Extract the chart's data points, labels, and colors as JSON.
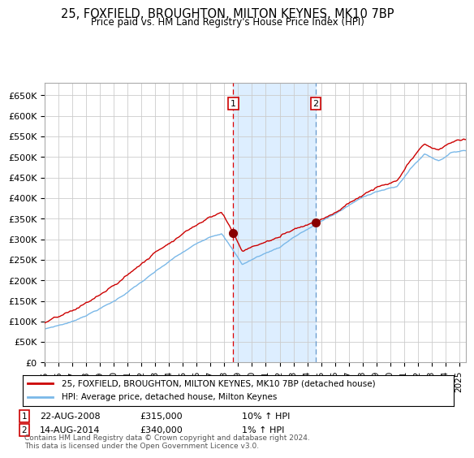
{
  "title1": "25, FOXFIELD, BROUGHTON, MILTON KEYNES, MK10 7BP",
  "title2": "Price paid vs. HM Land Registry's House Price Index (HPI)",
  "ylabel_ticks": [
    "£0",
    "£50K",
    "£100K",
    "£150K",
    "£200K",
    "£250K",
    "£300K",
    "£350K",
    "£400K",
    "£450K",
    "£500K",
    "£550K",
    "£600K",
    "£650K"
  ],
  "ytick_values": [
    0,
    50000,
    100000,
    150000,
    200000,
    250000,
    300000,
    350000,
    400000,
    450000,
    500000,
    550000,
    600000,
    650000
  ],
  "ylim": [
    0,
    680000
  ],
  "xlim_start": 1995.0,
  "xlim_end": 2025.5,
  "xtick_years": [
    1995,
    1996,
    1997,
    1998,
    1999,
    2000,
    2001,
    2002,
    2003,
    2004,
    2005,
    2006,
    2007,
    2008,
    2009,
    2010,
    2011,
    2012,
    2013,
    2014,
    2015,
    2016,
    2017,
    2018,
    2019,
    2020,
    2021,
    2022,
    2023,
    2024,
    2025
  ],
  "sale1_x": 2008.64,
  "sale1_y": 315000,
  "sale2_x": 2014.62,
  "sale2_y": 340000,
  "sale1_label": "1",
  "sale2_label": "2",
  "sale1_date": "22-AUG-2008",
  "sale1_price": "£315,000",
  "sale1_hpi": "10% ↑ HPI",
  "sale2_date": "14-AUG-2014",
  "sale2_price": "£340,000",
  "sale2_hpi": "1% ↑ HPI",
  "legend_line1": "25, FOXFIELD, BROUGHTON, MILTON KEYNES, MK10 7BP (detached house)",
  "legend_line2": "HPI: Average price, detached house, Milton Keynes",
  "footer": "Contains HM Land Registry data © Crown copyright and database right 2024.\nThis data is licensed under the Open Government Licence v3.0.",
  "hpi_color": "#7ab8e8",
  "price_color": "#cc0000",
  "shade_color": "#ddeeff",
  "background_color": "#ffffff",
  "grid_color": "#cccccc"
}
